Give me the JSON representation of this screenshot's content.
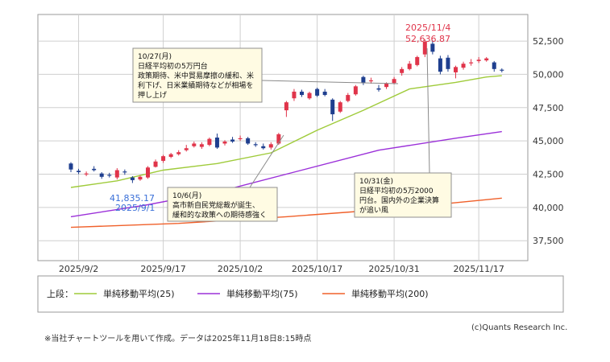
{
  "chart_data": {
    "type": "candlestick",
    "ylim": [
      36000,
      54500
    ],
    "y_ticks": [
      37500,
      40000,
      42500,
      45000,
      47500,
      50000,
      52500
    ],
    "y_tick_labels": [
      "37,500",
      "40,000",
      "42,500",
      "45,000",
      "47,500",
      "50,000",
      "52,500"
    ],
    "x_tick_labels": [
      "2025/9/2",
      "2025/9/17",
      "2025/10/2",
      "2025/10/17",
      "2025/10/31",
      "2025/11/17"
    ],
    "x_tick_index": [
      1,
      12,
      22,
      32,
      42,
      53
    ],
    "grid": true,
    "candles": [
      {
        "o": 43300,
        "h": 43400,
        "l": 42650,
        "c": 42850
      },
      {
        "o": 42750,
        "h": 42900,
        "l": 42500,
        "c": 42650
      },
      {
        "o": 42550,
        "h": 42700,
        "l": 42350,
        "c": 42550
      },
      {
        "o": 42900,
        "h": 43100,
        "l": 42700,
        "c": 42800
      },
      {
        "o": 42550,
        "h": 42650,
        "l": 42150,
        "c": 42300
      },
      {
        "o": 42450,
        "h": 42600,
        "l": 42250,
        "c": 42400
      },
      {
        "o": 42250,
        "h": 42950,
        "l": 42100,
        "c": 42800
      },
      {
        "o": 42700,
        "h": 42850,
        "l": 42450,
        "c": 42650
      },
      {
        "o": 42250,
        "h": 42350,
        "l": 41835,
        "c": 42050
      },
      {
        "o": 42100,
        "h": 42400,
        "l": 42000,
        "c": 42300
      },
      {
        "o": 42250,
        "h": 43100,
        "l": 42150,
        "c": 43000
      },
      {
        "o": 43050,
        "h": 43600,
        "l": 43000,
        "c": 43450
      },
      {
        "o": 43500,
        "h": 43950,
        "l": 43350,
        "c": 43850
      },
      {
        "o": 43800,
        "h": 44100,
        "l": 43700,
        "c": 44000
      },
      {
        "o": 44000,
        "h": 44300,
        "l": 43900,
        "c": 44150
      },
      {
        "o": 44300,
        "h": 44700,
        "l": 44200,
        "c": 44450
      },
      {
        "o": 44600,
        "h": 44950,
        "l": 44500,
        "c": 44800
      },
      {
        "o": 44550,
        "h": 44900,
        "l": 44400,
        "c": 44750
      },
      {
        "o": 44700,
        "h": 45250,
        "l": 44600,
        "c": 45150
      },
      {
        "o": 45250,
        "h": 45550,
        "l": 44400,
        "c": 44500
      },
      {
        "o": 44800,
        "h": 45050,
        "l": 44650,
        "c": 44950
      },
      {
        "o": 45100,
        "h": 45300,
        "l": 44850,
        "c": 44950
      },
      {
        "o": 45150,
        "h": 45400,
        "l": 45000,
        "c": 45200
      },
      {
        "o": 45200,
        "h": 45300,
        "l": 44700,
        "c": 44800
      },
      {
        "o": 44750,
        "h": 44900,
        "l": 44550,
        "c": 44700
      },
      {
        "o": 44600,
        "h": 44800,
        "l": 44350,
        "c": 44450
      },
      {
        "o": 44500,
        "h": 44900,
        "l": 44350,
        "c": 44750
      },
      {
        "o": 44800,
        "h": 45600,
        "l": 44700,
        "c": 45500
      },
      {
        "o": 47300,
        "h": 48000,
        "l": 46800,
        "c": 47900
      },
      {
        "o": 48200,
        "h": 48900,
        "l": 48000,
        "c": 48700
      },
      {
        "o": 48700,
        "h": 48850,
        "l": 48300,
        "c": 48450
      },
      {
        "o": 48200,
        "h": 48700,
        "l": 48100,
        "c": 48600
      },
      {
        "o": 48900,
        "h": 49000,
        "l": 48300,
        "c": 48400
      },
      {
        "o": 48700,
        "h": 48900,
        "l": 48350,
        "c": 48450
      },
      {
        "o": 48100,
        "h": 48200,
        "l": 46500,
        "c": 47000
      },
      {
        "o": 47200,
        "h": 48000,
        "l": 47100,
        "c": 47900
      },
      {
        "o": 48000,
        "h": 48600,
        "l": 47900,
        "c": 48450
      },
      {
        "o": 48500,
        "h": 49200,
        "l": 48400,
        "c": 49100
      },
      {
        "o": 49800,
        "h": 49900,
        "l": 49200,
        "c": 49350
      },
      {
        "o": 49500,
        "h": 49750,
        "l": 49300,
        "c": 49550
      },
      {
        "o": 48950,
        "h": 49200,
        "l": 48700,
        "c": 48850
      },
      {
        "o": 49050,
        "h": 49400,
        "l": 48900,
        "c": 49300
      },
      {
        "o": 49350,
        "h": 49800,
        "l": 49250,
        "c": 49650
      },
      {
        "o": 50100,
        "h": 50550,
        "l": 49900,
        "c": 50400
      },
      {
        "o": 50400,
        "h": 51000,
        "l": 50300,
        "c": 50800
      },
      {
        "o": 50700,
        "h": 51400,
        "l": 50600,
        "c": 51300
      },
      {
        "o": 51500,
        "h": 52636.87,
        "l": 51300,
        "c": 52450
      },
      {
        "o": 52300,
        "h": 52550,
        "l": 51500,
        "c": 51700
      },
      {
        "o": 51200,
        "h": 51400,
        "l": 50000,
        "c": 50200
      },
      {
        "o": 51250,
        "h": 51450,
        "l": 50200,
        "c": 50400
      },
      {
        "o": 50150,
        "h": 50650,
        "l": 49700,
        "c": 50550
      },
      {
        "o": 50500,
        "h": 50950,
        "l": 50350,
        "c": 50800
      },
      {
        "o": 50850,
        "h": 51150,
        "l": 50650,
        "c": 50900
      },
      {
        "o": 51000,
        "h": 51300,
        "l": 50850,
        "c": 51100
      },
      {
        "o": 51050,
        "h": 51300,
        "l": 50950,
        "c": 51200
      },
      {
        "o": 50900,
        "h": 51000,
        "l": 50200,
        "c": 50400
      },
      {
        "o": 50350,
        "h": 50450,
        "l": 50150,
        "c": 50300
      }
    ],
    "series": [
      {
        "name": "単純移動平均(25)",
        "color": "#9fcb3a",
        "x": [
          0,
          6,
          12,
          19,
          26,
          32,
          38,
          44,
          50,
          54,
          56
        ],
        "values": [
          41500,
          42000,
          42800,
          43300,
          44100,
          45800,
          47300,
          48900,
          49400,
          49800,
          49900
        ]
      },
      {
        "name": "単純移動平均(75)",
        "color": "#9b30d9",
        "x": [
          0,
          10,
          20,
          30,
          40,
          50,
          56
        ],
        "values": [
          39300,
          40200,
          41300,
          42800,
          44300,
          45200,
          45700
        ]
      },
      {
        "name": "単純移動平均(200)",
        "color": "#f0602a",
        "x": [
          0,
          14,
          28,
          42,
          56
        ],
        "values": [
          38500,
          38800,
          39300,
          39900,
          40700
        ]
      }
    ],
    "annotations": {
      "peak_date": "2025/11/4",
      "peak_value": "52,636.87",
      "trough_value": "41,835.17",
      "trough_date": "2025/9/1",
      "box1": [
        "10/27(月)",
        "日経平均初の5万円台",
        "政策期待、米中貿易摩擦の緩和、米",
        "利下げ、日米業績期待などが相場を",
        "押し上げ"
      ],
      "box2": [
        "10/6(月)",
        "高市新自民党総裁が誕生、",
        "緩和的な政策への期待感強く"
      ],
      "box3": [
        "10/31(金)",
        "日経平均初の5万2000",
        "円台。国内外の企業決算",
        "が追い風"
      ]
    },
    "legend_prefix": "上段："
  },
  "colors": {
    "up": "#e0344a",
    "down": "#1f3f8f",
    "grid": "#cfcfcf"
  },
  "footer": {
    "note": "※当社チャートツールを用いて作成。データは2025年11月18日8:15時点",
    "copyright": "(c)Quants Research Inc."
  }
}
